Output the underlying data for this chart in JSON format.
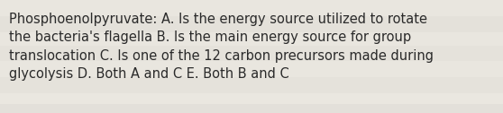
{
  "text": "Phosphoenolpyruvate: A. Is the energy source utilized to rotate\nthe bacteria's flagella B. Is the main energy source for group\ntranslocation C. Is one of the 12 carbon precursors made during\nglycolysis D. Both A and C E. Both B and C",
  "background_color": "#e8e5de",
  "stripe_colors": [
    "#eae7e0",
    "#e2dfd8",
    "#e5e2db",
    "#e0ddd6"
  ],
  "text_color": "#2a2a2a",
  "font_size": 10.5,
  "fig_width": 5.58,
  "fig_height": 1.26,
  "dpi": 100
}
